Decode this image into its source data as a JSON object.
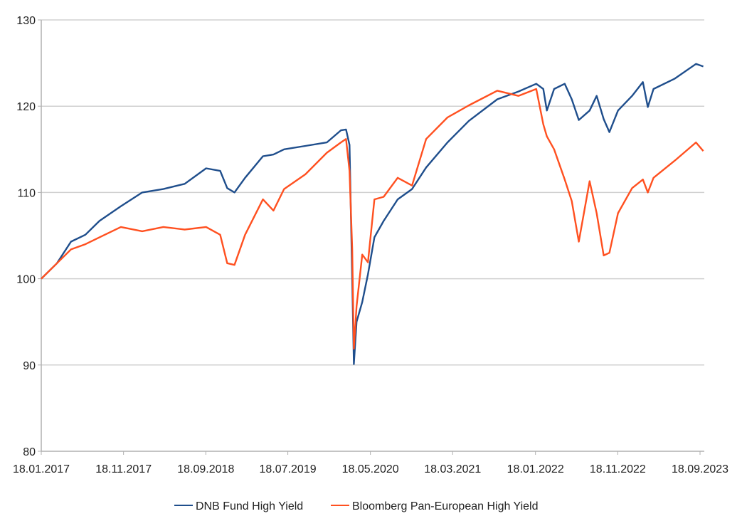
{
  "chart_data": {
    "type": "line",
    "title": "",
    "xlabel": "",
    "ylabel": "",
    "ylim": [
      80,
      130
    ],
    "yticks": [
      "80",
      "90",
      "100",
      "110",
      "120",
      "130"
    ],
    "xlim": [
      "2017-01-18",
      "2023-09-30"
    ],
    "xticks": [
      {
        "label": "18.01.2017",
        "date": "2017-01-18"
      },
      {
        "label": "18.11.2017",
        "date": "2017-11-18"
      },
      {
        "label": "18.09.2018",
        "date": "2018-09-18"
      },
      {
        "label": "18.07.2019",
        "date": "2019-07-18"
      },
      {
        "label": "18.05.2020",
        "date": "2020-05-18"
      },
      {
        "label": "18.03.2021",
        "date": "2021-03-18"
      },
      {
        "label": "18.01.2022",
        "date": "2022-01-18"
      },
      {
        "label": "18.11.2022",
        "date": "2022-11-18"
      },
      {
        "label": "18.09.2023",
        "date": "2023-09-18"
      }
    ],
    "grid": "horizontal",
    "legend_position": "bottom",
    "x": [
      "2017-01-18",
      "2017-03-17",
      "2017-05-08",
      "2017-06-30",
      "2017-08-21",
      "2017-11-08",
      "2018-01-26",
      "2018-04-14",
      "2018-07-02",
      "2018-09-19",
      "2018-11-10",
      "2018-12-06",
      "2019-01-02",
      "2019-02-10",
      "2019-04-17",
      "2019-05-26",
      "2019-07-04",
      "2019-09-21",
      "2019-12-09",
      "2020-01-30",
      "2020-02-18",
      "2020-03-02",
      "2020-03-12",
      "2020-03-18",
      "2020-03-28",
      "2020-04-18",
      "2020-05-09",
      "2020-06-02",
      "2020-07-06",
      "2020-08-27",
      "2020-10-19",
      "2020-12-10",
      "2021-02-27",
      "2021-05-17",
      "2021-08-30",
      "2021-11-16",
      "2022-01-21",
      "2022-02-16",
      "2022-03-01",
      "2022-03-28",
      "2022-05-06",
      "2022-06-01",
      "2022-06-27",
      "2022-08-06",
      "2022-09-01",
      "2022-09-27",
      "2022-10-18",
      "2022-11-19",
      "2023-01-10",
      "2023-02-19",
      "2023-03-09",
      "2023-03-30",
      "2023-06-17",
      "2023-09-03",
      "2023-09-30"
    ],
    "series": [
      {
        "name": "DNB Fund High Yield",
        "color": "#1f4e8c",
        "values": [
          100,
          101.8,
          104.3,
          105.1,
          106.7,
          108.4,
          110,
          110.4,
          111,
          112.8,
          112.5,
          110.5,
          110,
          111.7,
          114.2,
          114.4,
          115,
          115.4,
          115.8,
          117.2,
          117.3,
          115.5,
          100,
          90.1,
          95,
          97.3,
          100.5,
          104.8,
          106.7,
          109.2,
          110.4,
          112.9,
          115.8,
          118.3,
          120.8,
          121.7,
          122.6,
          122,
          119.5,
          122,
          122.6,
          120.8,
          118.4,
          119.5,
          121.2,
          118.5,
          117,
          119.5,
          121.2,
          122.8,
          119.9,
          122,
          123.2,
          124.9,
          124.6
        ]
      },
      {
        "name": "Bloomberg Pan-European High Yield",
        "color": "#ff5020",
        "values": [
          100,
          101.8,
          103.4,
          104,
          104.8,
          106,
          105.5,
          106,
          105.7,
          106,
          105.1,
          101.8,
          101.6,
          105.1,
          109.2,
          107.9,
          110.4,
          112.1,
          114.6,
          115.8,
          116.2,
          112.5,
          103.4,
          91.9,
          96.8,
          102.8,
          101.9,
          109.2,
          109.5,
          111.7,
          110.8,
          116.2,
          118.7,
          120.1,
          121.8,
          121.2,
          122,
          117.9,
          116.5,
          115,
          111.5,
          109,
          104.3,
          111.3,
          107.6,
          102.7,
          103,
          107.6,
          110.5,
          111.5,
          110,
          111.7,
          113.7,
          115.8,
          114.8
        ]
      }
    ]
  }
}
